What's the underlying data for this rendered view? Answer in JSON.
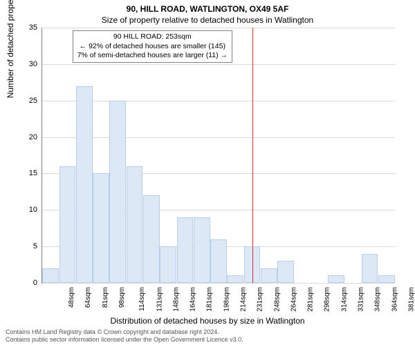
{
  "chart": {
    "type": "histogram",
    "title_main": "90, HILL ROAD, WATLINGTON, OX49 5AF",
    "title_sub": "Size of property relative to detached houses in Watlington",
    "title_fontsize": 12,
    "background_color": "#ffffff",
    "grid_color": "#d9d9d9",
    "axis_color": "#808080",
    "ylabel": "Number of detached properties",
    "xlabel": "Distribution of detached houses by size in Watlington",
    "label_fontsize": 12,
    "ylim": [
      0,
      35
    ],
    "ytick_step": 5,
    "bar_fill": "#dce8f6",
    "bar_stroke": "#b7cde8",
    "bar_width_ratio": 0.98,
    "categories": [
      "48sqm",
      "64sqm",
      "81sqm",
      "98sqm",
      "114sqm",
      "131sqm",
      "148sqm",
      "164sqm",
      "181sqm",
      "198sqm",
      "214sqm",
      "231sqm",
      "248sqm",
      "264sqm",
      "281sqm",
      "298sqm",
      "314sqm",
      "331sqm",
      "348sqm",
      "364sqm",
      "381sqm"
    ],
    "values": [
      2,
      16,
      27,
      15,
      25,
      16,
      12,
      5,
      9,
      9,
      6,
      1,
      5,
      2,
      3,
      0,
      0,
      1,
      0,
      4,
      1
    ],
    "ref_line": {
      "xindex": 12.5,
      "color": "#d03030"
    },
    "annotation": {
      "lines": [
        "90 HILL ROAD: 253sqm",
        "← 92% of detached houses are smaller (145)",
        "7% of semi-detached houses are larger (11) →"
      ],
      "border_color": "#808080",
      "bg_color": "#ffffff",
      "fontsize": 10.5
    }
  },
  "footer": {
    "line1": "Contains HM Land Registry data © Crown copyright and database right 2024.",
    "line2": "Contains public sector information licensed under the Open Government Licence v3.0."
  }
}
